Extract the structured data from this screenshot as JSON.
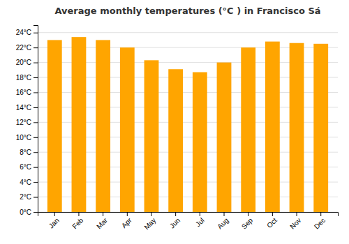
{
  "chart_data": {
    "type": "bar",
    "title": "Average monthly temperatures (°C ) in Francisco Sá",
    "categories": [
      "Jan",
      "Feb",
      "Mar",
      "Apr",
      "May",
      "Jun",
      "Jul",
      "Aug",
      "Sep",
      "Oct",
      "Nov",
      "Dec"
    ],
    "values": [
      23.0,
      23.4,
      23.0,
      22.0,
      20.3,
      19.1,
      18.7,
      20.0,
      22.0,
      22.8,
      22.6,
      22.5
    ],
    "color": "#FFA500",
    "ylim": [
      0,
      25
    ],
    "yticks": [
      {
        "value": 0,
        "label": "0°C"
      },
      {
        "value": 2,
        "label": "2°C"
      },
      {
        "value": 4,
        "label": "4°C"
      },
      {
        "value": 6,
        "label": "6°C"
      },
      {
        "value": 8,
        "label": "8°C"
      },
      {
        "value": 10,
        "label": "10°C"
      },
      {
        "value": 12,
        "label": "12°C"
      },
      {
        "value": 14,
        "label": "14°C"
      },
      {
        "value": 16,
        "label": "16°C"
      },
      {
        "value": 18,
        "label": "18°C"
      },
      {
        "value": 20,
        "label": "20°C"
      },
      {
        "value": 22,
        "label": "22°C"
      },
      {
        "value": 24,
        "label": "24°C"
      }
    ],
    "grid": true
  }
}
